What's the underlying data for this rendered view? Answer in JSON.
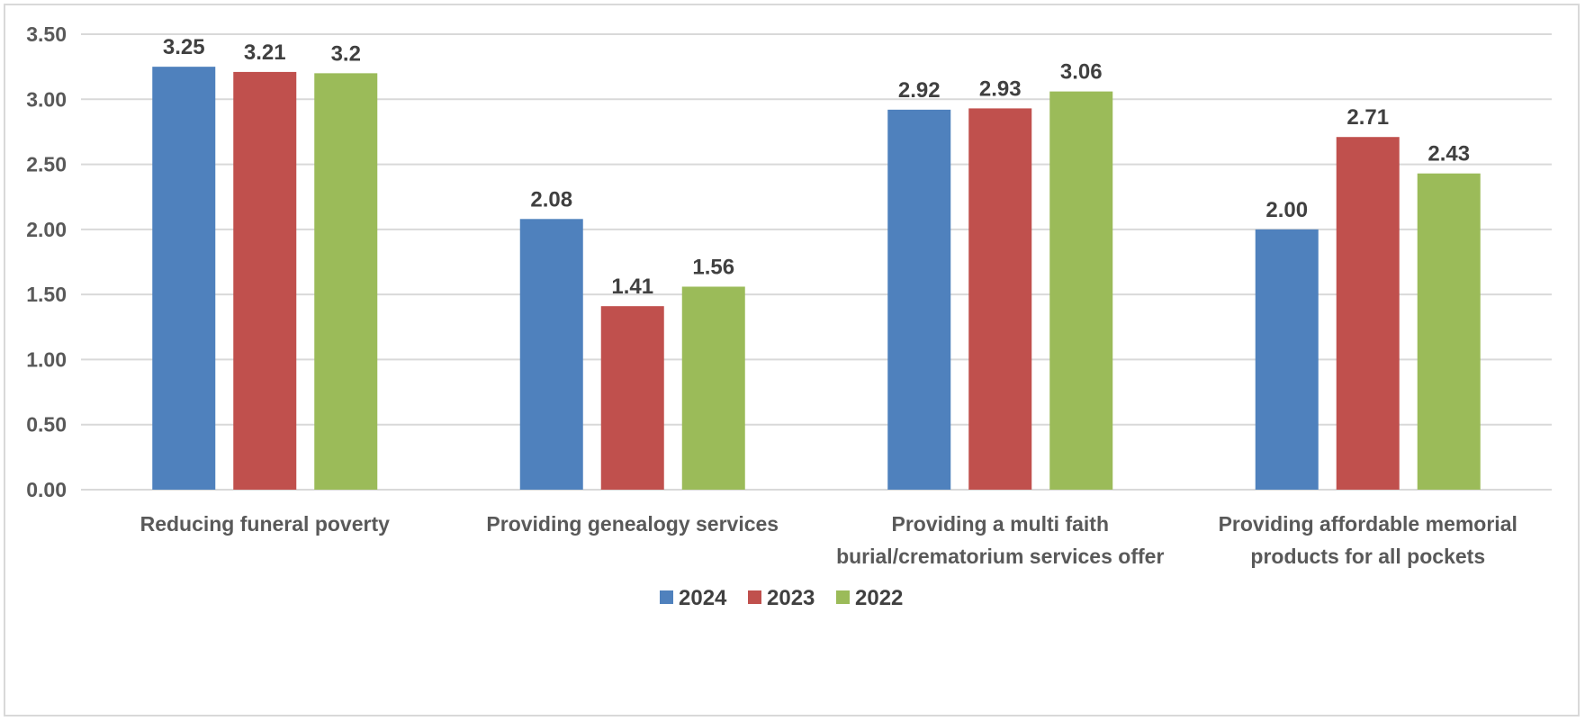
{
  "chart_data": {
    "type": "bar",
    "title": "",
    "xlabel": "",
    "ylabel": "",
    "ylim": [
      0,
      3.5
    ],
    "y_ticks": [
      "0.00",
      "0.50",
      "1.00",
      "1.50",
      "2.00",
      "2.50",
      "3.00",
      "3.50"
    ],
    "grid": true,
    "legend_position": "bottom",
    "categories": [
      [
        "Reducing funeral poverty"
      ],
      [
        "Providing genealogy services"
      ],
      [
        "Providing a multi faith",
        "burial/crematorium services offer"
      ],
      [
        "Providing affordable memorial",
        "products for all pockets"
      ]
    ],
    "series": [
      {
        "name": "2024",
        "color": "#4f81bd",
        "values": [
          3.25,
          2.08,
          2.92,
          2.0
        ],
        "labels": [
          "3.25",
          "2.08",
          "2.92",
          "2.00"
        ]
      },
      {
        "name": "2023",
        "color": "#c0504d",
        "values": [
          3.21,
          1.41,
          2.93,
          2.71
        ],
        "labels": [
          "3.21",
          "1.41",
          "2.93",
          "2.71"
        ]
      },
      {
        "name": "2022",
        "color": "#9bbb59",
        "values": [
          3.2,
          1.56,
          3.06,
          2.43
        ],
        "labels": [
          "3.2",
          "1.56",
          "3.06",
          "2.43"
        ]
      }
    ]
  }
}
